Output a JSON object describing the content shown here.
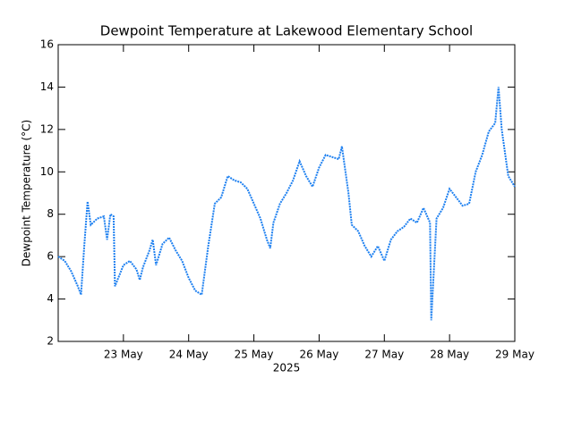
{
  "chart_data": {
    "type": "line",
    "title": "Dewpoint Temperature at Lakewood Elementary School",
    "y_label": "Dewpoint Temperature (°C)",
    "x_label": "2025",
    "color": "#1e80f0",
    "xlim": [
      22,
      29
    ],
    "xticks": [
      {
        "value": 23,
        "label": "23 May"
      },
      {
        "value": 24,
        "label": "24 May"
      },
      {
        "value": 25,
        "label": "25 May"
      },
      {
        "value": 26,
        "label": "26 May"
      },
      {
        "value": 27,
        "label": "27 May"
      },
      {
        "value": 28,
        "label": "28 May"
      },
      {
        "value": 29,
        "label": "29 May"
      }
    ],
    "ylim": [
      2,
      16
    ],
    "yticks": [
      2,
      4,
      6,
      8,
      10,
      12,
      14,
      16
    ],
    "x": [
      22.0,
      22.1,
      22.2,
      22.3,
      22.35,
      22.4,
      22.45,
      22.5,
      22.6,
      22.7,
      22.75,
      22.8,
      22.85,
      22.87,
      23.0,
      23.1,
      23.2,
      23.25,
      23.3,
      23.4,
      23.45,
      23.5,
      23.6,
      23.7,
      23.8,
      23.9,
      24.0,
      24.1,
      24.2,
      24.3,
      24.4,
      24.5,
      24.6,
      24.7,
      24.8,
      24.9,
      25.0,
      25.1,
      25.2,
      25.25,
      25.3,
      25.4,
      25.5,
      25.6,
      25.7,
      25.8,
      25.9,
      26.0,
      26.1,
      26.2,
      26.3,
      26.35,
      26.45,
      26.5,
      26.6,
      26.7,
      26.8,
      26.9,
      27.0,
      27.1,
      27.2,
      27.3,
      27.4,
      27.5,
      27.6,
      27.7,
      27.72,
      27.8,
      27.9,
      28.0,
      28.1,
      28.2,
      28.3,
      28.4,
      28.5,
      28.6,
      28.7,
      28.75,
      28.8,
      28.9,
      29.0
    ],
    "values": [
      6.0,
      5.8,
      5.3,
      4.6,
      4.2,
      6.5,
      8.6,
      7.5,
      7.8,
      7.9,
      6.8,
      8.0,
      7.9,
      4.6,
      5.6,
      5.8,
      5.4,
      4.9,
      5.5,
      6.3,
      6.8,
      5.6,
      6.6,
      6.9,
      6.3,
      5.8,
      5.0,
      4.4,
      4.2,
      6.5,
      8.5,
      8.8,
      9.8,
      9.6,
      9.5,
      9.2,
      8.5,
      7.8,
      6.8,
      6.4,
      7.6,
      8.5,
      9.0,
      9.6,
      10.5,
      9.8,
      9.3,
      10.2,
      10.8,
      10.7,
      10.6,
      11.2,
      9.0,
      7.5,
      7.2,
      6.5,
      6.0,
      6.5,
      5.8,
      6.8,
      7.2,
      7.4,
      7.8,
      7.6,
      8.3,
      7.6,
      3.0,
      7.8,
      8.3,
      9.2,
      8.8,
      8.4,
      8.5,
      10.0,
      10.8,
      11.9,
      12.3,
      14.0,
      12.0,
      9.8,
      9.3
    ]
  }
}
